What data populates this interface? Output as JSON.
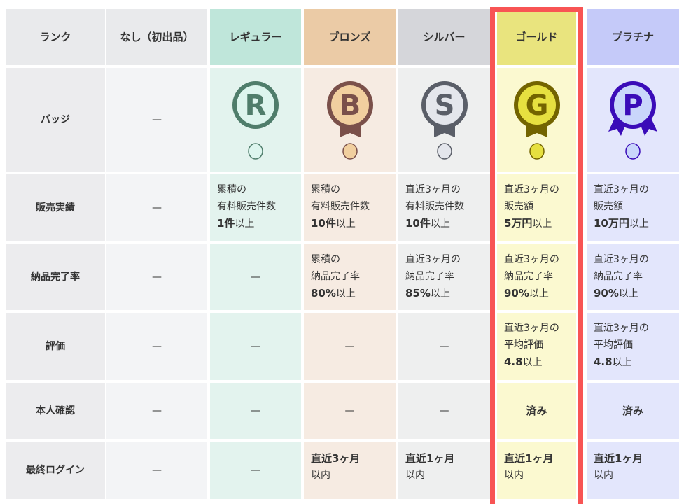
{
  "columns": [
    {
      "key": "rank",
      "label": "ランク",
      "header_color": "#e9eaec",
      "body_color": "#ececee"
    },
    {
      "key": "none",
      "label": "なし（初出品）",
      "header_color": "#e9eaec",
      "body_color": "#f3f4f6"
    },
    {
      "key": "regular",
      "label": "レギュラー",
      "header_color": "#bfe6da",
      "body_color": "#e3f3ee",
      "badge": {
        "letter": "R",
        "ring": "#4f7d6b",
        "fill": "#ddf5ee",
        "ribbon": false
      }
    },
    {
      "key": "bronze",
      "label": "ブロンズ",
      "header_color": "#ebcba6",
      "body_color": "#f6ebe2",
      "badge": {
        "letter": "B",
        "ring": "#7a504a",
        "fill": "#f1cf9f",
        "ribbon": true
      }
    },
    {
      "key": "silver",
      "label": "シルバー",
      "header_color": "#d5d6da",
      "body_color": "#eeefef",
      "badge": {
        "letter": "S",
        "ring": "#5a5e68",
        "fill": "#e4e6ec",
        "ribbon": true
      }
    },
    {
      "key": "gold",
      "label": "ゴールド",
      "header_color": "#e9e47e",
      "body_color": "#fbf9d0",
      "badge": {
        "letter": "G",
        "ring": "#736400",
        "fill": "#e6e040",
        "ribbon": true
      }
    },
    {
      "key": "platinum",
      "label": "プラチナ",
      "header_color": "#c5caf9",
      "body_color": "#e3e6fc",
      "badge": {
        "letter": "P",
        "ring": "#3a0bb8",
        "fill": "#c9d6fb",
        "ribbon": true
      }
    }
  ],
  "highlight_column": "gold",
  "highlight_color": "#f85454",
  "dash": "—",
  "rows": [
    {
      "label": "バッジ",
      "type": "badge"
    },
    {
      "label": "販売実績",
      "cells": [
        "—",
        {
          "lines": [
            "累積の",
            "有料販売件数"
          ],
          "bold": "1件",
          "suffix": "以上"
        },
        {
          "lines": [
            "累積の",
            "有料販売件数"
          ],
          "bold": "10件",
          "suffix": "以上"
        },
        {
          "lines": [
            "直近3ヶ月の",
            "有料販売件数"
          ],
          "bold": "10件",
          "suffix": "以上"
        },
        {
          "lines": [
            "直近3ヶ月の",
            "販売額"
          ],
          "bold": "5万円",
          "suffix": "以上"
        },
        {
          "lines": [
            "直近3ヶ月の",
            "販売額"
          ],
          "bold": "10万円",
          "suffix": "以上"
        }
      ]
    },
    {
      "label": "納品完了率",
      "cells": [
        "—",
        "—",
        {
          "lines": [
            "累積の",
            "納品完了率"
          ],
          "bold": "80%",
          "suffix": "以上"
        },
        {
          "lines": [
            "直近3ヶ月の",
            "納品完了率"
          ],
          "bold": "85%",
          "suffix": "以上"
        },
        {
          "lines": [
            "直近3ヶ月の",
            "納品完了率"
          ],
          "bold": "90%",
          "suffix": "以上"
        },
        {
          "lines": [
            "直近3ヶ月の",
            "納品完了率"
          ],
          "bold": "90%",
          "suffix": "以上"
        }
      ]
    },
    {
      "label": "評価",
      "cells": [
        "—",
        "—",
        "—",
        "—",
        {
          "lines": [
            "直近3ヶ月の",
            "平均評価"
          ],
          "bold": "4.8",
          "suffix": "以上"
        },
        {
          "lines": [
            "直近3ヶ月の",
            "平均評価"
          ],
          "bold": "4.8",
          "suffix": "以上"
        }
      ]
    },
    {
      "label": "本人確認",
      "cells": [
        "—",
        "—",
        "—",
        "—",
        {
          "center": "済み"
        },
        {
          "center": "済み"
        }
      ]
    },
    {
      "label": "最終ログイン",
      "cells": [
        "—",
        "—",
        {
          "boldfirst": "直近3ヶ月",
          "lines": [
            "以内"
          ]
        },
        {
          "boldfirst": "直近1ヶ月",
          "lines": [
            "以内"
          ]
        },
        {
          "boldfirst": "直近1ヶ月",
          "lines": [
            "以内"
          ]
        },
        {
          "boldfirst": "直近1ヶ月",
          "lines": [
            "以内"
          ]
        }
      ]
    }
  ]
}
